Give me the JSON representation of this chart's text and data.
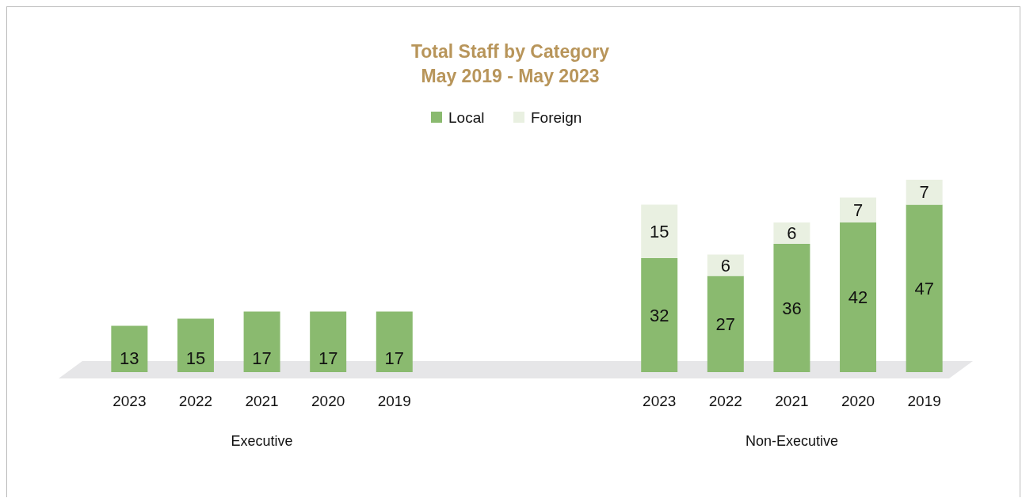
{
  "chart_data": {
    "type": "bar",
    "title": "Total Staff by Category",
    "subtitle": "May 2019 - May 2023",
    "categories": [
      "2023",
      "2022",
      "2021",
      "2020",
      "2019",
      null,
      null,
      null,
      "2023",
      "2022",
      "2021",
      "2020",
      "2019"
    ],
    "series": [
      {
        "name": "Local",
        "color": "#8aba6f",
        "values": [
          13,
          15,
          17,
          17,
          17,
          null,
          null,
          null,
          32,
          27,
          36,
          42,
          47
        ]
      },
      {
        "name": "Foreign",
        "color": "#e9f0e1",
        "values": [
          null,
          null,
          null,
          null,
          null,
          null,
          null,
          null,
          15,
          6,
          6,
          7,
          7
        ]
      }
    ],
    "stacked": true,
    "data_labels": true,
    "legend": "top",
    "grid": false,
    "annotations": [
      "Executive",
      "Non-Executive"
    ]
  }
}
